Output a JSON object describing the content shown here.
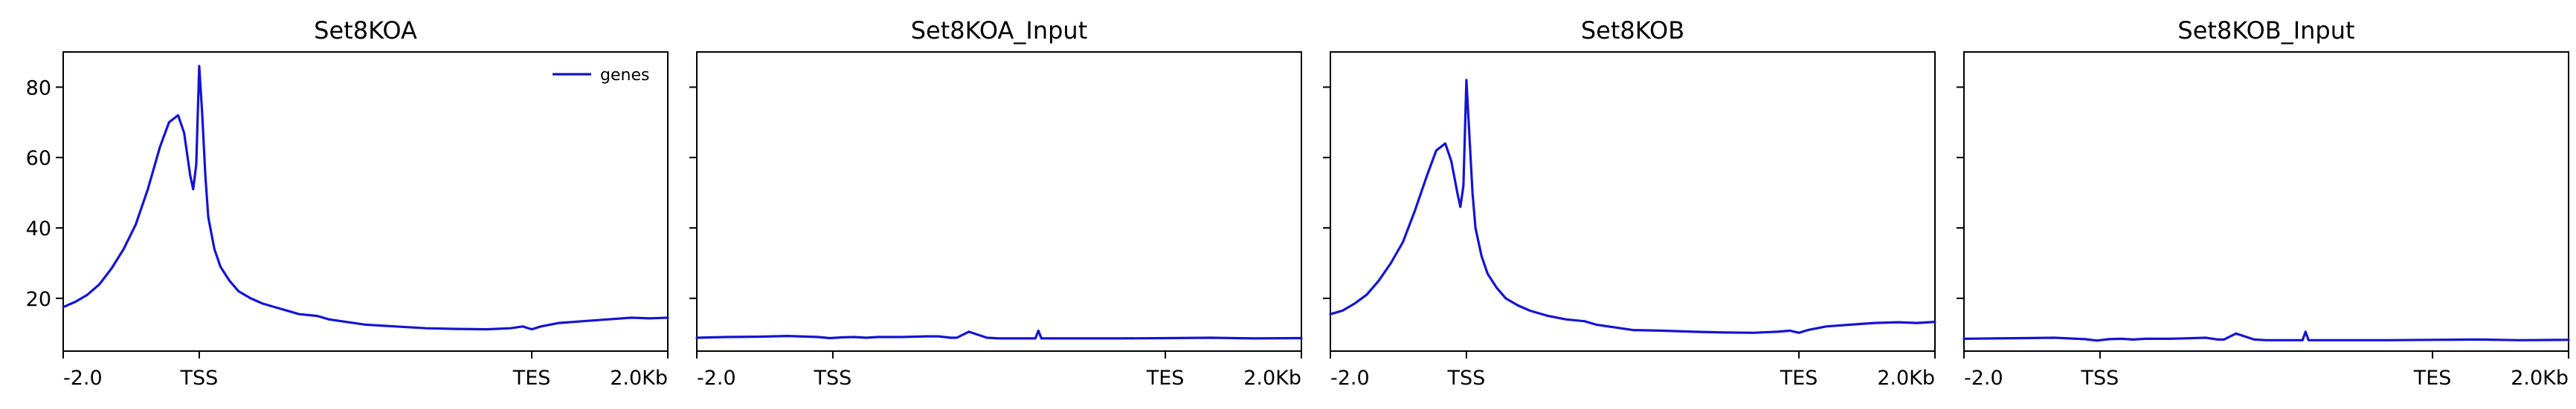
{
  "chart_data": [
    {
      "type": "line",
      "title": "Set8KOA",
      "xticks": [
        "-2.0",
        "TSS",
        "TES",
        "2.0Kb"
      ],
      "x_tick_positions": [
        0,
        0.225,
        0.775,
        1.0
      ],
      "ylim": [
        5,
        90
      ],
      "yticks": [
        20,
        40,
        60,
        80
      ],
      "show_yticklabels": true,
      "legend": {
        "entries": [
          "genes"
        ],
        "placement": "top-right"
      },
      "series": [
        {
          "name": "genes",
          "color": "#1414d2",
          "x": [
            0,
            0.02,
            0.04,
            0.06,
            0.08,
            0.1,
            0.12,
            0.14,
            0.16,
            0.175,
            0.19,
            0.2,
            0.21,
            0.215,
            0.22,
            0.225,
            0.23,
            0.235,
            0.24,
            0.25,
            0.26,
            0.275,
            0.29,
            0.31,
            0.33,
            0.36,
            0.39,
            0.42,
            0.44,
            0.46,
            0.5,
            0.55,
            0.6,
            0.65,
            0.7,
            0.74,
            0.76,
            0.775,
            0.79,
            0.82,
            0.86,
            0.9,
            0.94,
            0.97,
            1.0
          ],
          "y": [
            17.5,
            19,
            21,
            24,
            28.5,
            34,
            41,
            51,
            63,
            70,
            72,
            67,
            55,
            51,
            58,
            86,
            72,
            55,
            43,
            34,
            29,
            25,
            22,
            20,
            18.5,
            17,
            15.5,
            15,
            14,
            13.5,
            12.5,
            12,
            11.5,
            11.3,
            11.2,
            11.5,
            12,
            11.2,
            12,
            13,
            13.5,
            14,
            14.5,
            14.3,
            14.5
          ]
        }
      ]
    },
    {
      "type": "line",
      "title": "Set8KOA_Input",
      "xticks": [
        "-2.0",
        "TSS",
        "TES",
        "2.0Kb"
      ],
      "x_tick_positions": [
        0,
        0.225,
        0.775,
        1.0
      ],
      "ylim": [
        5,
        90
      ],
      "yticks": [
        20,
        40,
        60,
        80
      ],
      "show_yticklabels": false,
      "series": [
        {
          "name": "genes",
          "color": "#1414d2",
          "x": [
            0,
            0.05,
            0.1,
            0.15,
            0.2,
            0.22,
            0.24,
            0.26,
            0.28,
            0.3,
            0.34,
            0.38,
            0.4,
            0.42,
            0.43,
            0.45,
            0.48,
            0.5,
            0.54,
            0.56,
            0.565,
            0.57,
            0.575,
            0.58,
            0.62,
            0.7,
            0.78,
            0.85,
            0.92,
            1.0
          ],
          "y": [
            8.8,
            9,
            9.1,
            9.3,
            9,
            8.7,
            8.9,
            9,
            8.8,
            9,
            9,
            9.2,
            9.2,
            8.8,
            8.8,
            10.5,
            8.8,
            8.6,
            8.6,
            8.6,
            10.8,
            8.6,
            8.6,
            8.6,
            8.6,
            8.6,
            8.7,
            8.8,
            8.6,
            8.7
          ]
        }
      ]
    },
    {
      "type": "line",
      "title": "Set8KOB",
      "xticks": [
        "-2.0",
        "TSS",
        "TES",
        "2.0Kb"
      ],
      "x_tick_positions": [
        0,
        0.225,
        0.775,
        1.0
      ],
      "ylim": [
        5,
        90
      ],
      "yticks": [
        20,
        40,
        60,
        80
      ],
      "show_yticklabels": false,
      "series": [
        {
          "name": "genes",
          "color": "#1414d2",
          "x": [
            0,
            0.02,
            0.04,
            0.06,
            0.08,
            0.1,
            0.12,
            0.14,
            0.16,
            0.175,
            0.19,
            0.2,
            0.21,
            0.215,
            0.22,
            0.225,
            0.23,
            0.235,
            0.24,
            0.25,
            0.26,
            0.275,
            0.29,
            0.31,
            0.33,
            0.36,
            0.39,
            0.42,
            0.44,
            0.46,
            0.5,
            0.55,
            0.6,
            0.65,
            0.7,
            0.74,
            0.76,
            0.775,
            0.79,
            0.82,
            0.86,
            0.9,
            0.94,
            0.97,
            1.0
          ],
          "y": [
            15.5,
            16.5,
            18.5,
            21,
            25,
            30,
            36,
            45,
            55,
            62,
            64,
            59,
            50,
            46,
            52,
            82,
            66,
            50,
            40,
            32,
            27,
            23,
            20,
            18,
            16.5,
            15,
            14,
            13.5,
            12.5,
            12,
            11,
            10.8,
            10.5,
            10.3,
            10.2,
            10.5,
            10.8,
            10.2,
            11,
            12,
            12.5,
            13,
            13.2,
            13,
            13.3
          ]
        }
      ]
    },
    {
      "type": "line",
      "title": "Set8KOB_Input",
      "xticks": [
        "-2.0",
        "TSS",
        "TES",
        "2.0Kb"
      ],
      "x_tick_positions": [
        0,
        0.225,
        0.775,
        1.0
      ],
      "ylim": [
        5,
        90
      ],
      "yticks": [
        20,
        40,
        60,
        80
      ],
      "show_yticklabels": false,
      "series": [
        {
          "name": "genes",
          "color": "#1414d2",
          "x": [
            0,
            0.05,
            0.1,
            0.15,
            0.2,
            0.22,
            0.24,
            0.26,
            0.28,
            0.3,
            0.34,
            0.38,
            0.4,
            0.42,
            0.43,
            0.45,
            0.48,
            0.5,
            0.54,
            0.56,
            0.565,
            0.57,
            0.575,
            0.58,
            0.62,
            0.7,
            0.78,
            0.85,
            0.92,
            1.0
          ],
          "y": [
            8.5,
            8.6,
            8.7,
            8.8,
            8.4,
            8,
            8.4,
            8.5,
            8.3,
            8.5,
            8.5,
            8.7,
            8.8,
            8.3,
            8.3,
            10,
            8.3,
            8.1,
            8.1,
            8.1,
            10.5,
            8.1,
            8.1,
            8.1,
            8.1,
            8.1,
            8.2,
            8.3,
            8.1,
            8.2
          ]
        }
      ]
    }
  ]
}
